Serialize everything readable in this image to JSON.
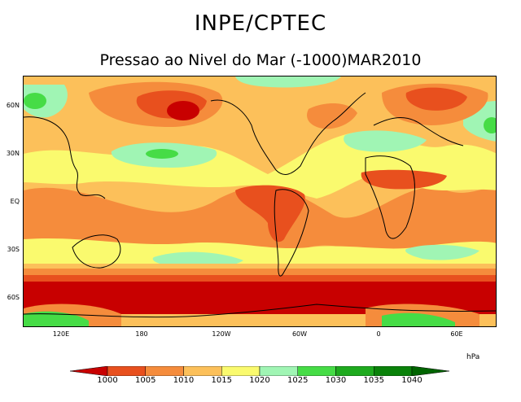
{
  "header": {
    "title": "INPE/CPTEC",
    "subtitle": "Pressao ao Nivel do Mar (-1000)MAR2010"
  },
  "map": {
    "lat_ticks": [
      "60N",
      "30N",
      "EQ",
      "30S",
      "60S"
    ],
    "lon_ticks": [
      "120E",
      "180",
      "120W",
      "60W",
      "0",
      "60E"
    ]
  },
  "legend": {
    "unit": "hPa",
    "levels": [
      "1000",
      "1005",
      "1010",
      "1015",
      "1020",
      "1025",
      "1030",
      "1035",
      "1040"
    ],
    "colors": [
      "#c80000",
      "#e8501e",
      "#f58c3c",
      "#fcc05a",
      "#fafa6e",
      "#a0f5b4",
      "#46dc46",
      "#1eaa1e",
      "#0a820a",
      "#006400"
    ]
  }
}
